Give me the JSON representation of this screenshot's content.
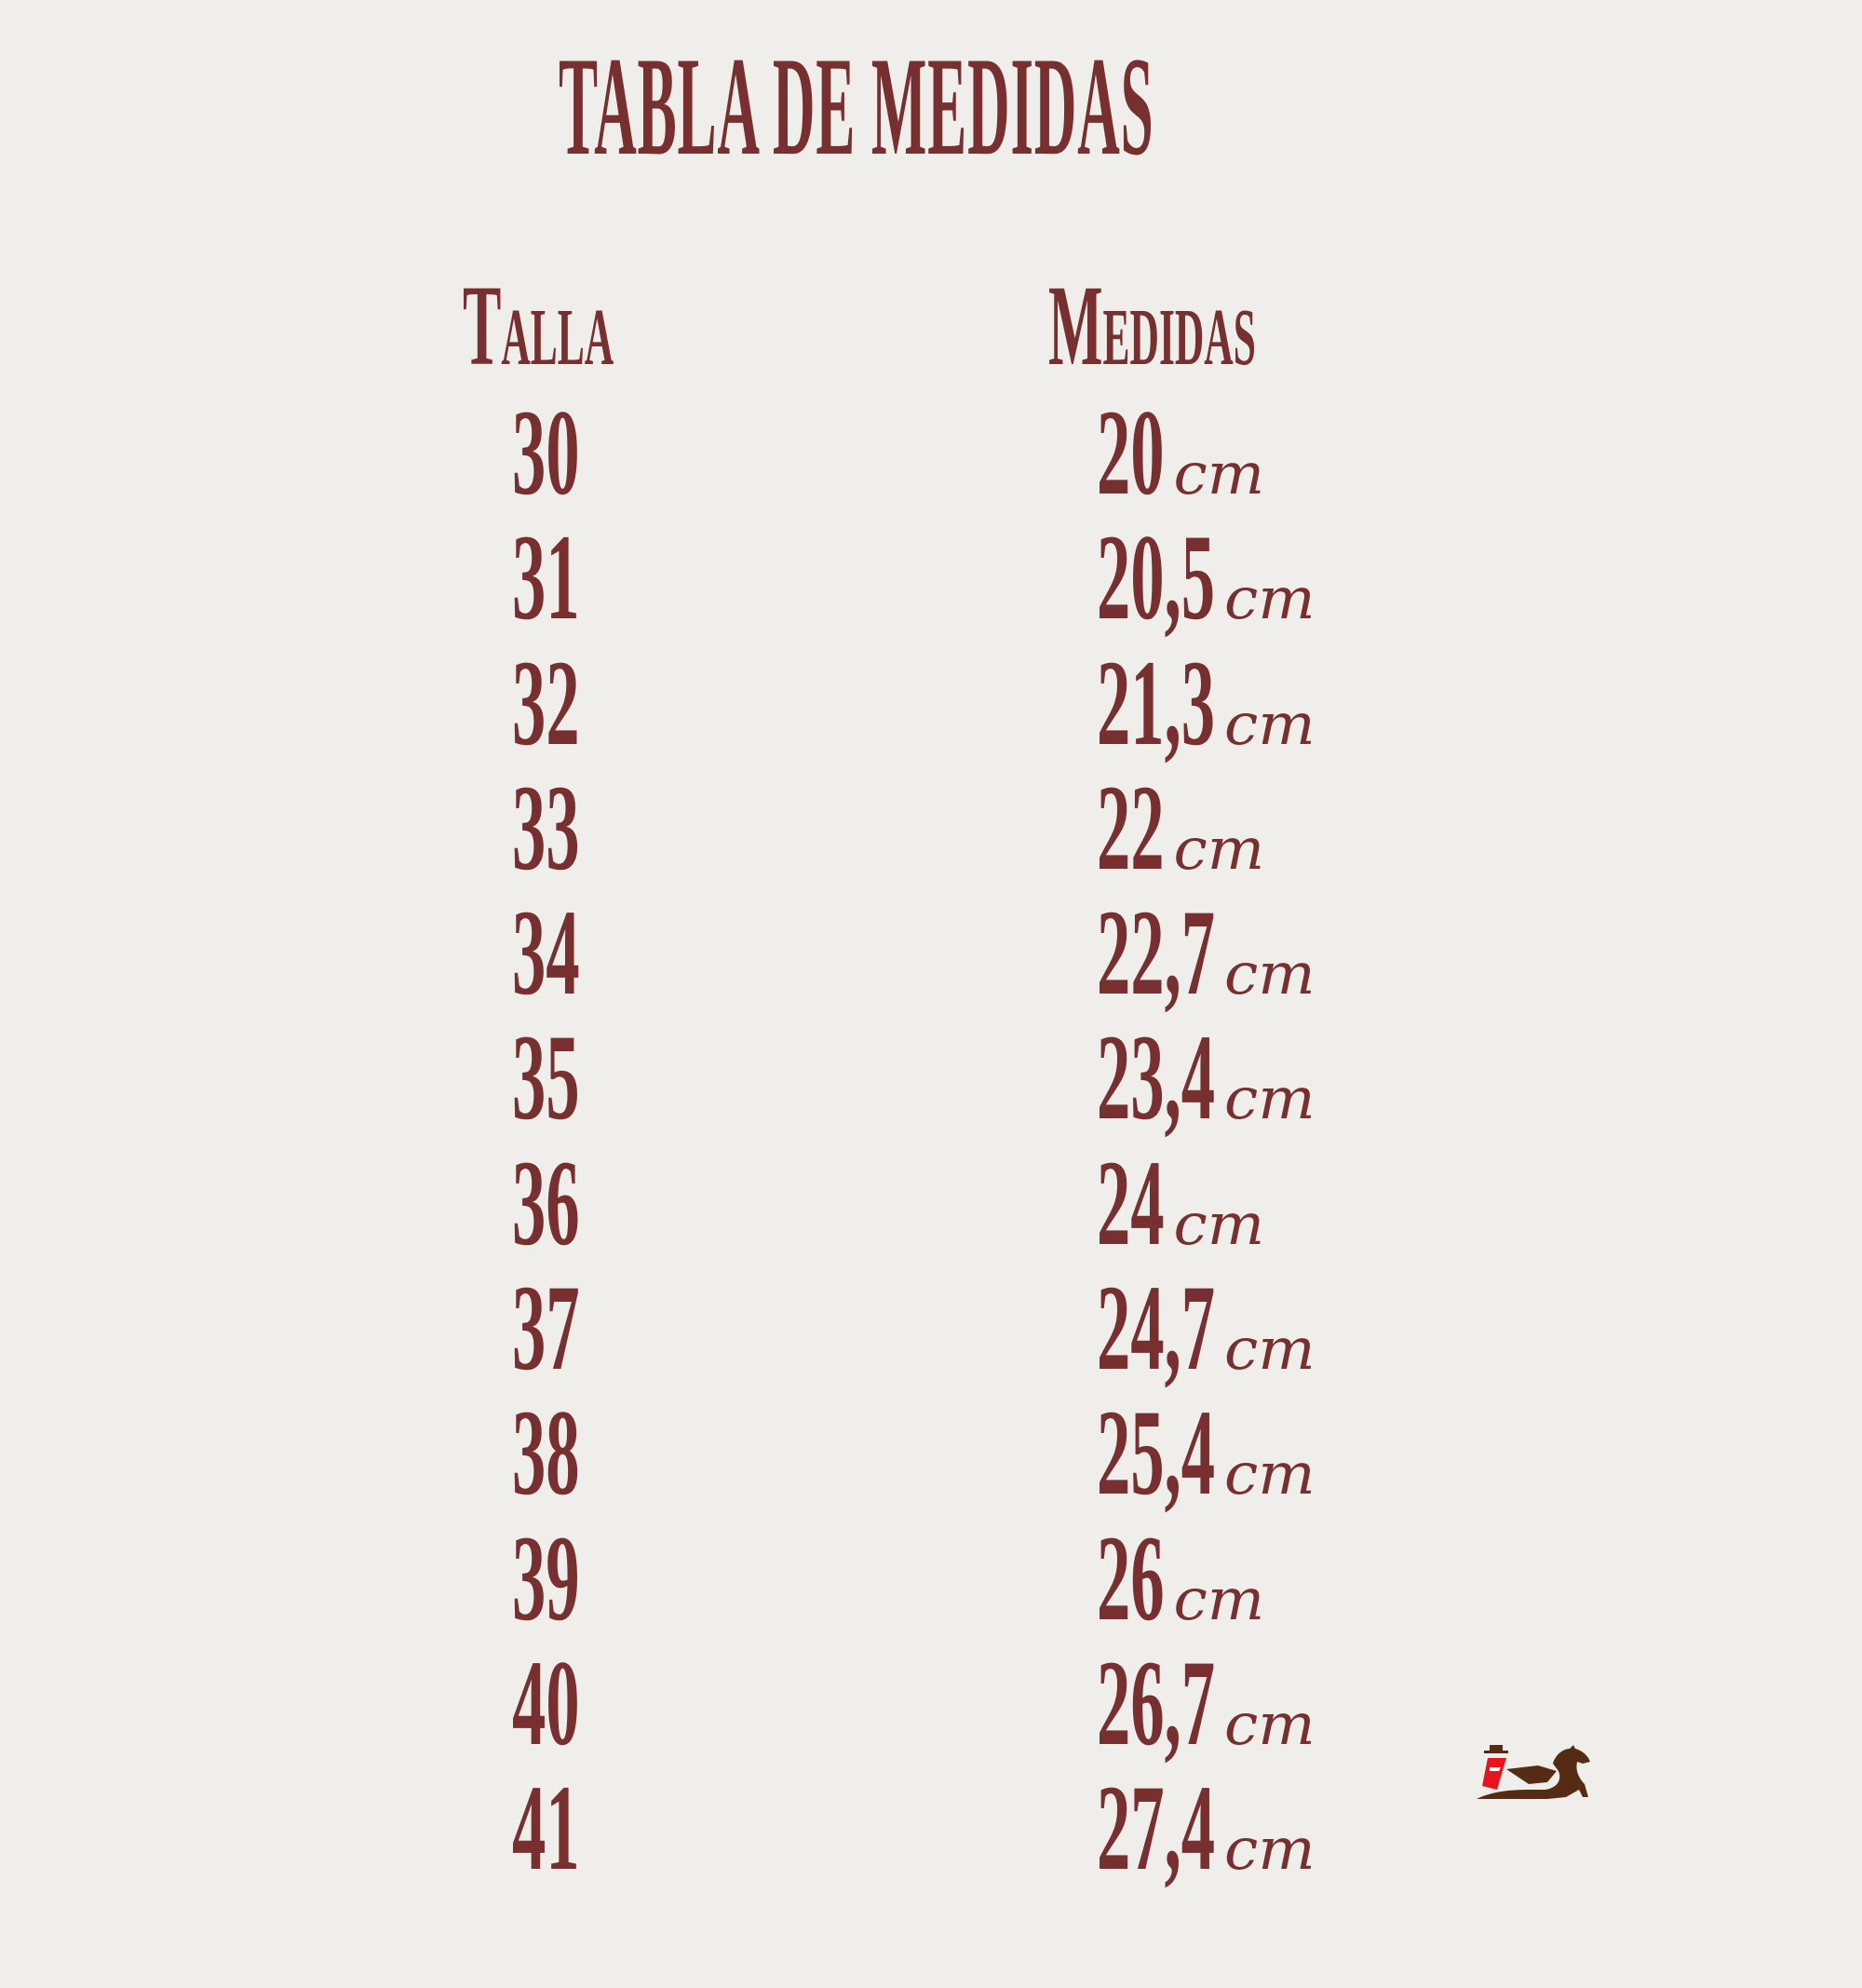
{
  "title": "TABLA DE MEDIDAS",
  "headers": {
    "size": "Talla",
    "measure": "Medidas"
  },
  "unit": "cm",
  "rows": [
    {
      "size": "30",
      "measure": "20"
    },
    {
      "size": "31",
      "measure": "20,5"
    },
    {
      "size": "32",
      "measure": "21,3"
    },
    {
      "size": "33",
      "measure": "22"
    },
    {
      "size": "34",
      "measure": "22,7"
    },
    {
      "size": "35",
      "measure": "23,4"
    },
    {
      "size": "36",
      "measure": "24"
    },
    {
      "size": "37",
      "measure": "24,7"
    },
    {
      "size": "38",
      "measure": "25,4"
    },
    {
      "size": "39",
      "measure": "26"
    },
    {
      "size": "40",
      "measure": "26,7"
    },
    {
      "size": "41",
      "measure": "27,4"
    }
  ],
  "colors": {
    "text": "#772f30",
    "background": "#f0eeea",
    "logo_brown": "#552b14",
    "logo_red": "#e8141c"
  },
  "logo": {
    "icon": "horse-rider-logo-icon"
  }
}
